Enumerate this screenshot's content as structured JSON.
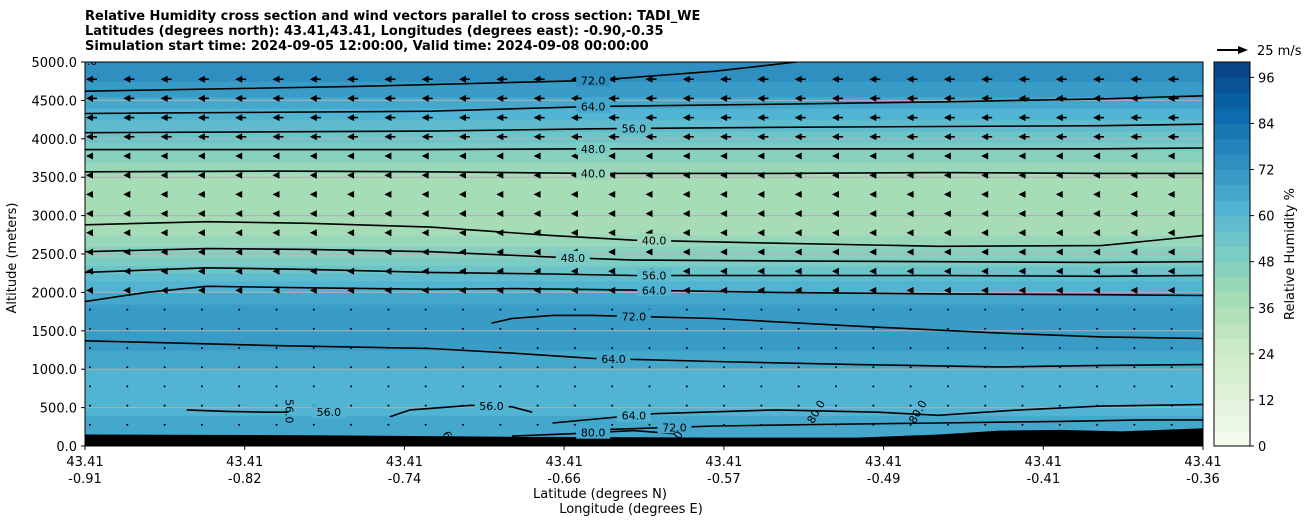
{
  "chart_data": {
    "type": "contour",
    "title_lines": [
      "Relative Humidity cross section and wind vectors parallel to cross section: TADI_WE",
      "Latitudes (degrees north): 43.41,43.41, Longitudes (degrees east): -0.90,-0.35",
      "Simulation start time: 2024-09-05 12:00:00, Valid time: 2024-09-08 00:00:00"
    ],
    "ylabel": "Altitude (meters)",
    "xlabel_lines": [
      "Latitude (degrees N)",
      "Longitude (degrees E)"
    ],
    "ylim": [
      0,
      5000
    ],
    "y_ticks": [
      "0.0",
      "500.0",
      "1000.0",
      "1500.0",
      "2000.0",
      "2500.0",
      "3000.0",
      "3500.0",
      "4000.0",
      "4500.0",
      "5000.0"
    ],
    "y_tick_values": [
      0,
      500,
      1000,
      1500,
      2000,
      2500,
      3000,
      3500,
      4000,
      4500,
      5000
    ],
    "x_ticks": [
      {
        "lat": "43.41",
        "lon": "-0.91"
      },
      {
        "lat": "43.41",
        "lon": "-0.82"
      },
      {
        "lat": "43.41",
        "lon": "-0.74"
      },
      {
        "lat": "43.41",
        "lon": "-0.66"
      },
      {
        "lat": "43.41",
        "lon": "-0.57"
      },
      {
        "lat": "43.41",
        "lon": "-0.49"
      },
      {
        "lat": "43.41",
        "lon": "-0.41"
      },
      {
        "lat": "43.41",
        "lon": "-0.36"
      }
    ],
    "grid": "horizontal",
    "colorbar": {
      "label": "Relative Humidity %",
      "min": 0,
      "max": 100,
      "step": 4,
      "ticks": [
        0,
        12,
        24,
        36,
        48,
        60,
        72,
        84,
        96
      ],
      "colormap": "GnBu"
    },
    "quiver_key": {
      "label": "25 m/s"
    },
    "vertical_rh_profile": [
      {
        "alt": 0,
        "rh": 66
      },
      {
        "alt": 250,
        "rh": 68
      },
      {
        "alt": 500,
        "rh": 60
      },
      {
        "alt": 750,
        "rh": 60
      },
      {
        "alt": 1000,
        "rh": 64
      },
      {
        "alt": 1250,
        "rh": 68
      },
      {
        "alt": 1500,
        "rh": 72
      },
      {
        "alt": 1750,
        "rh": 70
      },
      {
        "alt": 2000,
        "rh": 64
      },
      {
        "alt": 2250,
        "rh": 56
      },
      {
        "alt": 2500,
        "rh": 46
      },
      {
        "alt": 2750,
        "rh": 40
      },
      {
        "alt": 3000,
        "rh": 37
      },
      {
        "alt": 3250,
        "rh": 36
      },
      {
        "alt": 3500,
        "rh": 39
      },
      {
        "alt": 3750,
        "rh": 45
      },
      {
        "alt": 4000,
        "rh": 54
      },
      {
        "alt": 4250,
        "rh": 60
      },
      {
        "alt": 4500,
        "rh": 67
      },
      {
        "alt": 4750,
        "rh": 72
      },
      {
        "alt": 5000,
        "rh": 76
      }
    ],
    "contours": [
      {
        "level": "72.0",
        "x": [
          -0.91,
          -0.78,
          -0.66,
          -0.6,
          -0.56
        ],
        "y": [
          4620,
          4680,
          4760,
          4880,
          5000
        ],
        "label_at": -0.66
      },
      {
        "level": "64.0",
        "x": [
          -0.91,
          -0.74,
          -0.66,
          -0.57,
          -0.49,
          -0.41,
          -0.36
        ],
        "y": [
          4330,
          4360,
          4420,
          4450,
          4480,
          4520,
          4560
        ],
        "label_at": -0.66
      },
      {
        "level": "56.0",
        "x": [
          -0.91,
          -0.74,
          -0.66,
          -0.57,
          -0.49,
          -0.41,
          -0.36
        ],
        "y": [
          4080,
          4100,
          4130,
          4150,
          4160,
          4170,
          4190
        ],
        "label_at": -0.64
      },
      {
        "level": "48.0",
        "x": [
          -0.91,
          -0.74,
          -0.66,
          -0.57,
          -0.49,
          -0.41,
          -0.36
        ],
        "y": [
          3860,
          3860,
          3870,
          3870,
          3870,
          3870,
          3880
        ],
        "label_at": -0.66
      },
      {
        "level": "40.0",
        "x": [
          -0.91,
          -0.82,
          -0.74,
          -0.66,
          -0.57,
          -0.49,
          -0.41,
          -0.36
        ],
        "y": [
          3570,
          3580,
          3570,
          3550,
          3550,
          3560,
          3550,
          3550
        ],
        "label_at": -0.66
      },
      {
        "level": "40.0",
        "x": [
          -0.91,
          -0.85,
          -0.8,
          -0.74,
          -0.68,
          -0.64,
          -0.57,
          -0.49,
          -0.41,
          -0.36
        ],
        "y": [
          2880,
          2920,
          2900,
          2850,
          2740,
          2680,
          2640,
          2600,
          2610,
          2740
        ],
        "label_at": -0.63
      },
      {
        "level": "48.0",
        "x": [
          -0.91,
          -0.85,
          -0.8,
          -0.74,
          -0.68,
          -0.64,
          -0.57,
          -0.49,
          -0.41,
          -0.36
        ],
        "y": [
          2530,
          2570,
          2560,
          2530,
          2460,
          2420,
          2410,
          2400,
          2390,
          2400
        ],
        "label_at": -0.67
      },
      {
        "level": "56.0",
        "x": [
          -0.91,
          -0.85,
          -0.8,
          -0.74,
          -0.68,
          -0.64,
          -0.57,
          -0.49,
          -0.41,
          -0.36
        ],
        "y": [
          2260,
          2320,
          2300,
          2260,
          2240,
          2220,
          2220,
          2220,
          2210,
          2220
        ],
        "label_at": -0.63
      },
      {
        "level": "64.0",
        "x": [
          -0.91,
          -0.88,
          -0.85,
          -0.8,
          -0.74,
          -0.7,
          -0.64,
          -0.57,
          -0.49,
          -0.41,
          -0.36
        ],
        "y": [
          1880,
          2000,
          2080,
          2060,
          2040,
          2050,
          2030,
          2000,
          1980,
          1970,
          1960
        ],
        "label_at": -0.63
      },
      {
        "level": "72.0",
        "x": [
          -0.71,
          -0.7,
          -0.68,
          -0.66,
          -0.6,
          -0.53,
          -0.46,
          -0.41,
          -0.36
        ],
        "y": [
          1600,
          1660,
          1700,
          1700,
          1660,
          1560,
          1470,
          1420,
          1400
        ],
        "label_at": -0.64
      },
      {
        "level": "64.0",
        "x": [
          -0.91,
          -0.82,
          -0.74,
          -0.7,
          -0.66,
          -0.6,
          -0.53,
          -0.46,
          -0.41,
          -0.36
        ],
        "y": [
          1370,
          1310,
          1270,
          1210,
          1140,
          1100,
          1060,
          1030,
          1050,
          1060
        ],
        "label_at": -0.65
      },
      {
        "level": "64.0",
        "x": [
          -0.68,
          -0.63,
          -0.57,
          -0.52,
          -0.49,
          -0.45,
          -0.41,
          -0.36
        ],
        "y": [
          300,
          420,
          470,
          440,
          400,
          470,
          520,
          540
        ],
        "label_at": -0.64
      },
      {
        "level": "72.0",
        "x": [
          -0.66,
          -0.6,
          -0.55,
          -0.49,
          -0.43,
          -0.39,
          -0.36
        ],
        "y": [
          210,
          260,
          280,
          300,
          320,
          340,
          340
        ],
        "label_at": -0.62
      },
      {
        "level": "56.0",
        "x": [
          -0.86,
          -0.84,
          -0.82,
          -0.81
        ],
        "y": [
          470,
          450,
          440,
          440
        ],
        "label_at": -0.79
      },
      {
        "level": "56.0",
        "x": [
          -0.76,
          -0.75,
          -0.72,
          -0.7,
          -0.69
        ],
        "y": [
          380,
          470,
          530,
          510,
          440
        ],
        "label_at": -0.71
      },
      {
        "level": "80.0",
        "x": [
          -0.7,
          -0.67,
          -0.64,
          -0.62
        ],
        "y": [
          130,
          160,
          200,
          160
        ],
        "label_at": -0.66
      }
    ],
    "extra_contour_labels": [
      "80.0",
      "72.0",
      "80.0",
      "80.0",
      "72.0",
      "56.0",
      "64.0"
    ]
  }
}
